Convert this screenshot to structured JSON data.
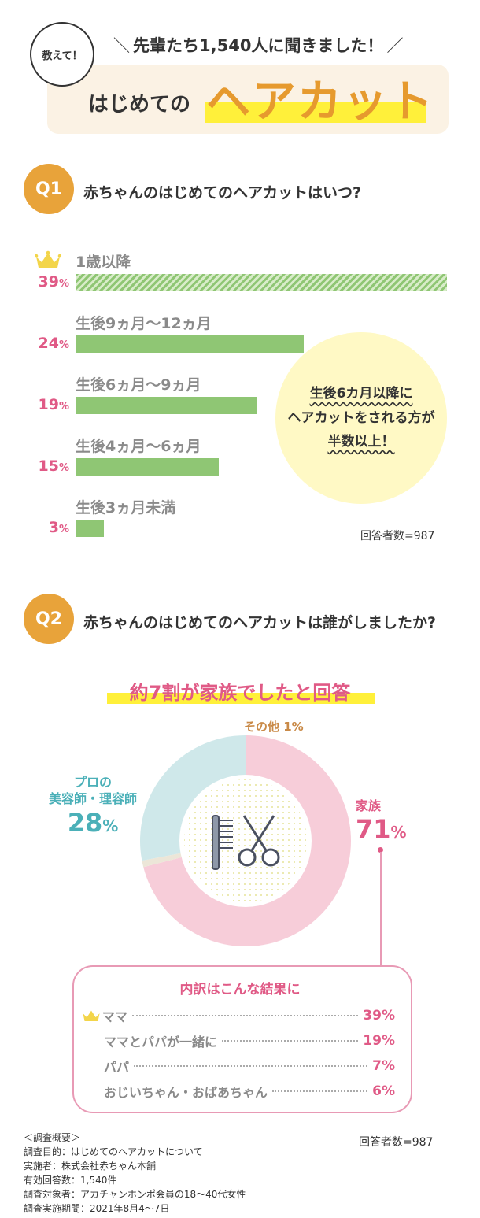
{
  "header": {
    "bubble": "教えて！",
    "top_line": "先輩たち1,540人に聞きました！",
    "title_small": "はじめての",
    "title_big": "ヘアカット"
  },
  "q1": {
    "badge": "Q1",
    "question": "赤ちゃんのはじめてのヘアカットはいつ?",
    "note_lines": [
      "生後6カ月以降に",
      "ヘアカットをされる方が",
      "半数以上！"
    ],
    "respondents": "回答者数=987"
  },
  "q2": {
    "badge": "Q2",
    "question": "赤ちゃんのはじめてのヘアカットは誰がしましたか?",
    "result_title": "約7割が家族でしたと回答",
    "respondents": "回答者数=987"
  },
  "chart_data": [
    {
      "type": "bar",
      "orientation": "horizontal",
      "categories": [
        "1歳以降",
        "生後9ヵ月〜12ヵ月",
        "生後6ヵ月〜9ヵ月",
        "生後4ヵ月〜6ヵ月",
        "生後3ヵ月未満"
      ],
      "values": [
        39,
        24,
        19,
        15,
        3
      ],
      "value_suffix": "%",
      "xlim": [
        0,
        39
      ],
      "highlight": "1歳以降",
      "colors": {
        "bar": "#8fc674",
        "pct": "#e05a86",
        "label": "#8a8a8a"
      }
    },
    {
      "type": "pie",
      "donut": true,
      "slices": [
        {
          "label": "家族",
          "value": 71,
          "color": "#f7cdd9",
          "text_color": "#e05a86"
        },
        {
          "label": "その他",
          "value": 1,
          "color": "#ece6d8",
          "text_color": "#c98a48"
        },
        {
          "label": "プロの\n美容師・理容師",
          "value": 28,
          "color": "#cfe8ea",
          "text_color": "#4bb0b8"
        }
      ],
      "value_suffix": "%"
    },
    {
      "type": "table",
      "title": "内訳はこんな結果に",
      "rows": [
        {
          "label": "ママ",
          "value": "39%",
          "highlight": true
        },
        {
          "label": "ママとパパが一緒に",
          "value": "19%"
        },
        {
          "label": "パパ",
          "value": "7%"
        },
        {
          "label": "おじいちゃん・おばあちゃん",
          "value": "6%"
        }
      ]
    }
  ],
  "survey": {
    "heading": "＜調査概要＞",
    "lines": [
      "調査目的：はじめてのヘアカットについて",
      "実施者：株式会社赤ちゃん本舗",
      "有効回答数：1,540件",
      "調査対象者：アカチャンホンポ会員の18〜40代女性",
      "調査実施期間：2021年8月4〜7日"
    ]
  },
  "icons": [
    "crown-icon",
    "comb-icon",
    "scissors-icon"
  ]
}
